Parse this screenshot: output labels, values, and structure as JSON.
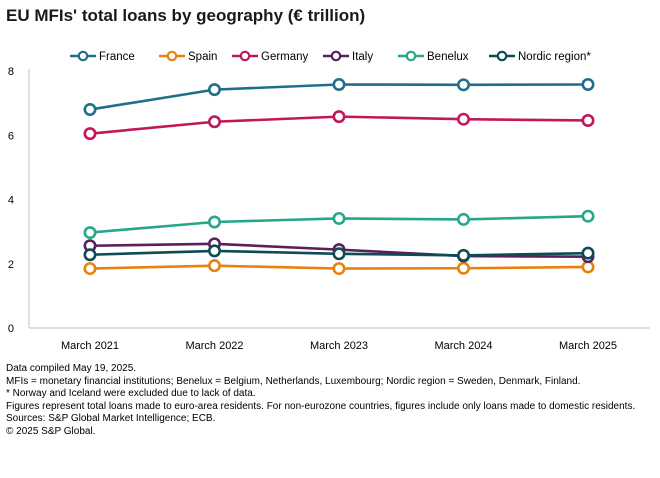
{
  "title": "EU MFIs' total loans by geography (€ trillion)",
  "chart_data": {
    "type": "line",
    "title": "EU MFIs' total loans by geography (€ trillion)",
    "xlabel": "",
    "ylabel": "",
    "categories": [
      "March 2021",
      "March 2022",
      "March 2023",
      "March 2024",
      "March 2025"
    ],
    "ylim": [
      0,
      8
    ],
    "yticks": [
      0,
      2,
      4,
      6,
      8
    ],
    "grid": false,
    "legend_position": "top",
    "series": [
      {
        "name": "France",
        "color": "#1f6f8b",
        "values": [
          6.8,
          7.42,
          7.58,
          7.57,
          7.58
        ]
      },
      {
        "name": "Spain",
        "color": "#e8820c",
        "values": [
          1.85,
          1.94,
          1.85,
          1.86,
          1.9
        ]
      },
      {
        "name": "Germany",
        "color": "#c2185b",
        "values": [
          6.05,
          6.42,
          6.58,
          6.5,
          6.46
        ]
      },
      {
        "name": "Italy",
        "color": "#5b1f5e",
        "values": [
          2.56,
          2.62,
          2.44,
          2.24,
          2.22
        ]
      },
      {
        "name": "Benelux",
        "color": "#26a78a",
        "values": [
          2.97,
          3.3,
          3.41,
          3.38,
          3.48
        ]
      },
      {
        "name": "Nordic region*",
        "color": "#0f4a55",
        "values": [
          2.28,
          2.4,
          2.31,
          2.26,
          2.33
        ]
      }
    ]
  },
  "footnotes": [
    "Data compiled May 19, 2025.",
    "MFIs = monetary financial institutions; Benelux = Belgium, Netherlands, Luxembourg; Nordic region = Sweden, Denmark, Finland.",
    "* Norway and Iceland were excluded due to lack of data.",
    "Figures represent total loans made to euro-area residents. For non-eurozone countries, figures include only loans made to domestic residents.",
    "Sources: S&P Global Market Intelligence; ECB.",
    "© 2025 S&P Global."
  ]
}
